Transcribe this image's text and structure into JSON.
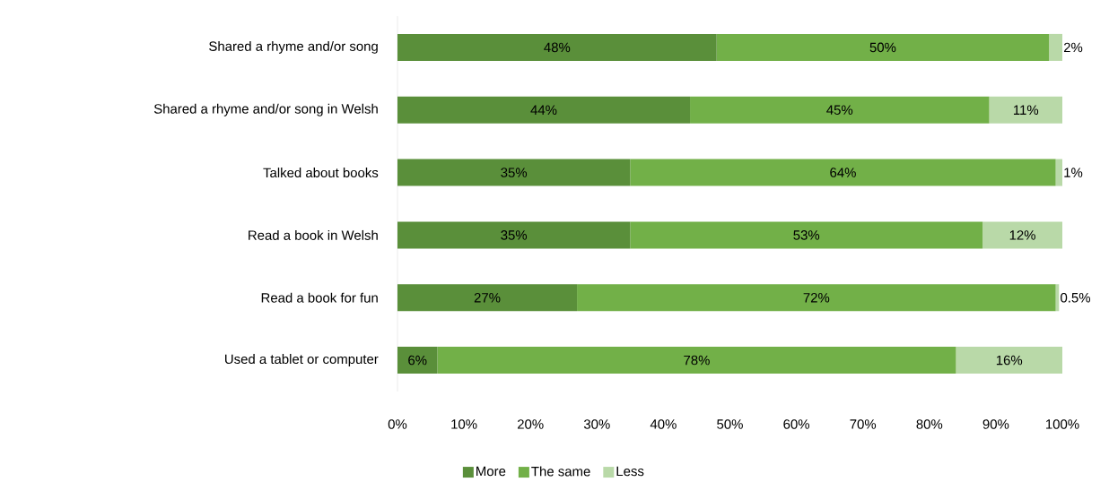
{
  "chart_data": {
    "type": "bar",
    "orientation": "horizontal",
    "stacked": true,
    "categories": [
      "Shared a rhyme and/or song",
      "Shared a rhyme and/or song in Welsh",
      "Talked about books",
      "Read a book in Welsh",
      "Read a book for fun",
      "Used a tablet or computer"
    ],
    "series": [
      {
        "name": "More",
        "color": "#5a8f3a",
        "values": [
          48,
          44,
          35,
          35,
          27,
          6
        ],
        "value_labels": [
          "48%",
          "44%",
          "35%",
          "35%",
          "27%",
          "6%"
        ]
      },
      {
        "name": "The same",
        "color": "#72b048",
        "values": [
          50,
          45,
          64,
          53,
          72,
          78
        ],
        "value_labels": [
          "50%",
          "45%",
          "64%",
          "53%",
          "72%",
          "78%"
        ]
      },
      {
        "name": "Less",
        "color": "#b9d9a8",
        "values": [
          2,
          11,
          1,
          12,
          0.5,
          16
        ],
        "value_labels": [
          "2%",
          "11%",
          "1%",
          "12%",
          "0.5%",
          "16%"
        ]
      }
    ],
    "xlim": [
      0,
      100
    ],
    "xticks": [
      {
        "value": 0,
        "label": "0%"
      },
      {
        "value": 10,
        "label": "10%"
      },
      {
        "value": 20,
        "label": "20%"
      },
      {
        "value": 30,
        "label": "30%"
      },
      {
        "value": 40,
        "label": "40%"
      },
      {
        "value": 50,
        "label": "50%"
      },
      {
        "value": 60,
        "label": "60%"
      },
      {
        "value": 70,
        "label": "70%"
      },
      {
        "value": 80,
        "label": "80%"
      },
      {
        "value": 90,
        "label": "90%"
      },
      {
        "value": 100,
        "label": "100%"
      }
    ],
    "legend": "bottom"
  }
}
